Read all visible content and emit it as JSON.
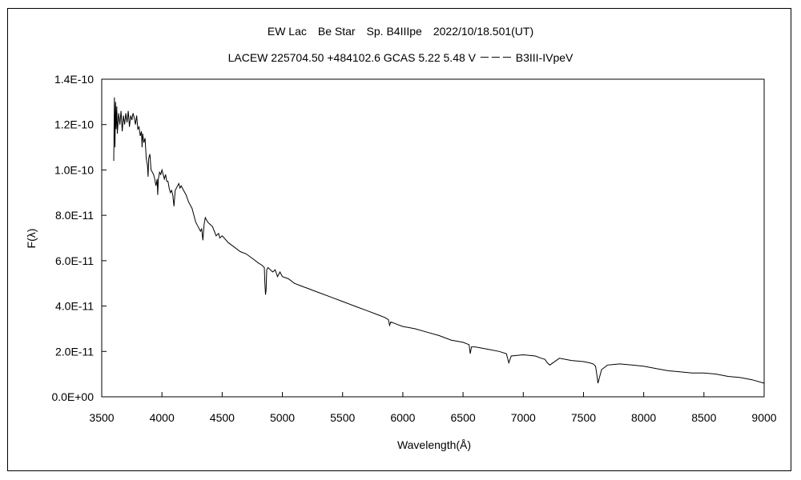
{
  "chart_data": {
    "type": "line",
    "title": "EW Lac　Be Star　Sp. B4IIIpe　2022/10/18.501(UT)",
    "subtitle": "LACEW 225704.50 +484102.6 GCAS 5.22 5.48 V －－－ B3III-IVpeV",
    "xlabel": "Wavelength(Å)",
    "ylabel": "F(λ)",
    "xlim": [
      3500,
      9000
    ],
    "ylim": [
      0,
      1.4e-10
    ],
    "grid": false,
    "legend": "none",
    "line_color": "#000000",
    "x_ticks": [
      3500,
      4000,
      4500,
      5000,
      5500,
      6000,
      6500,
      7000,
      7500,
      8000,
      8500,
      9000
    ],
    "x_tick_labels": [
      "3500",
      "4000",
      "4500",
      "5000",
      "5500",
      "6000",
      "6500",
      "7000",
      "7500",
      "8000",
      "8500",
      "9000"
    ],
    "y_ticks": [
      0,
      2e-11,
      4e-11,
      6e-11,
      8e-11,
      1e-10,
      1.2e-10,
      1.4e-10
    ],
    "y_tick_labels": [
      "0.0E+00",
      "2.0E-11",
      "4.0E-11",
      "6.0E-11",
      "8.0E-11",
      "1.0E-10",
      "1.2E-10",
      "1.4E-10"
    ],
    "series": [
      {
        "x": [
          3600,
          3605,
          3610,
          3615,
          3620,
          3625,
          3630,
          3640,
          3650,
          3660,
          3670,
          3680,
          3690,
          3700,
          3710,
          3720,
          3730,
          3740,
          3750,
          3760,
          3770,
          3780,
          3790,
          3800,
          3810,
          3820,
          3830,
          3835,
          3840,
          3850,
          3860,
          3870,
          3880,
          3885,
          3890,
          3900,
          3910,
          3920,
          3930,
          3940,
          3950,
          3960,
          3965,
          3970,
          3980,
          3990,
          4000,
          4010,
          4020,
          4030,
          4040,
          4050,
          4060,
          4070,
          4080,
          4090,
          4100,
          4110,
          4120,
          4130,
          4140,
          4150,
          4160,
          4180,
          4200,
          4220,
          4250,
          4280,
          4300,
          4320,
          4330,
          4340,
          4350,
          4360,
          4380,
          4400,
          4420,
          4450,
          4470,
          4480,
          4500,
          4550,
          4600,
          4650,
          4700,
          4750,
          4800,
          4830,
          4850,
          4855,
          4860,
          4865,
          4870,
          4880,
          4900,
          4920,
          4940,
          4960,
          4980,
          5000,
          5050,
          5100,
          5150,
          5200,
          5300,
          5400,
          5500,
          5600,
          5700,
          5800,
          5850,
          5880,
          5890,
          5900,
          5950,
          6000,
          6100,
          6200,
          6300,
          6400,
          6500,
          6550,
          6560,
          6570,
          6600,
          6700,
          6800,
          6860,
          6870,
          6880,
          6900,
          7000,
          7100,
          7150,
          7180,
          7200,
          7220,
          7300,
          7400,
          7500,
          7550,
          7580,
          7600,
          7610,
          7620,
          7650,
          7700,
          7800,
          7900,
          8000,
          8100,
          8200,
          8300,
          8400,
          8500,
          8600,
          8700,
          8800,
          8900,
          9000
        ],
        "y": [
          1.04e-10,
          1.32e-10,
          1.1e-10,
          1.3e-10,
          1.18e-10,
          1.28e-10,
          1.16e-10,
          1.25e-10,
          1.2e-10,
          1.26e-10,
          1.17e-10,
          1.24e-10,
          1.2e-10,
          1.25e-10,
          1.21e-10,
          1.26e-10,
          1.19e-10,
          1.24e-10,
          1.22e-10,
          1.25e-10,
          1.23e-10,
          1.2e-10,
          1.24e-10,
          1.18e-10,
          1.19e-10,
          1.15e-10,
          1.17e-10,
          1.1e-10,
          1.16e-10,
          1.12e-10,
          1.14e-10,
          1.05e-10,
          1.02e-10,
          9.7e-11,
          1.05e-10,
          1.07e-10,
          1e-10,
          9.9e-11,
          9.8e-11,
          9.6e-11,
          9.3e-11,
          9.6e-11,
          8.9e-11,
          9.6e-11,
          9.9e-11,
          9.8e-11,
          1e-10,
          9.8e-11,
          9.6e-11,
          9.8e-11,
          9.5e-11,
          9.5e-11,
          9.2e-11,
          9e-11,
          9.1e-11,
          8.9e-11,
          8.4e-11,
          9.1e-11,
          9.2e-11,
          9.3e-11,
          9.4e-11,
          9.2e-11,
          9.3e-11,
          9.1e-11,
          8.9e-11,
          8.6e-11,
          8.3e-11,
          7.7e-11,
          7.5e-11,
          7.3e-11,
          7.4e-11,
          6.9e-11,
          7.6e-11,
          7.9e-11,
          7.7e-11,
          7.6e-11,
          7.5e-11,
          7.1e-11,
          7.2e-11,
          7e-11,
          7.1e-11,
          6.8e-11,
          6.6e-11,
          6.4e-11,
          6.3e-11,
          6.1e-11,
          5.9e-11,
          5.8e-11,
          5.7e-11,
          5e-11,
          4.5e-11,
          4.7e-11,
          5.6e-11,
          5.7e-11,
          5.6e-11,
          5.5e-11,
          5.6e-11,
          5.3e-11,
          5.5e-11,
          5.3e-11,
          5.2e-11,
          5e-11,
          4.9e-11,
          4.8e-11,
          4.6e-11,
          4.4e-11,
          4.2e-11,
          4e-11,
          3.8e-11,
          3.6e-11,
          3.5e-11,
          3.4e-11,
          3.15e-11,
          3.3e-11,
          3.2e-11,
          3.1e-11,
          3e-11,
          2.85e-11,
          2.7e-11,
          2.5e-11,
          2.4e-11,
          2.3e-11,
          1.9e-11,
          2.2e-11,
          2.2e-11,
          2.1e-11,
          2e-11,
          1.9e-11,
          1.7e-11,
          1.5e-11,
          1.8e-11,
          1.85e-11,
          1.8e-11,
          1.7e-11,
          1.65e-11,
          1.5e-11,
          1.4e-11,
          1.7e-11,
          1.6e-11,
          1.55e-11,
          1.5e-11,
          1.45e-11,
          1.35e-11,
          1e-11,
          6e-12,
          1.2e-11,
          1.4e-11,
          1.45e-11,
          1.4e-11,
          1.35e-11,
          1.25e-11,
          1.15e-11,
          1.1e-11,
          1.05e-11,
          1.05e-11,
          1e-11,
          9e-12,
          8.5e-12,
          7.5e-12,
          6e-12
        ]
      }
    ]
  }
}
